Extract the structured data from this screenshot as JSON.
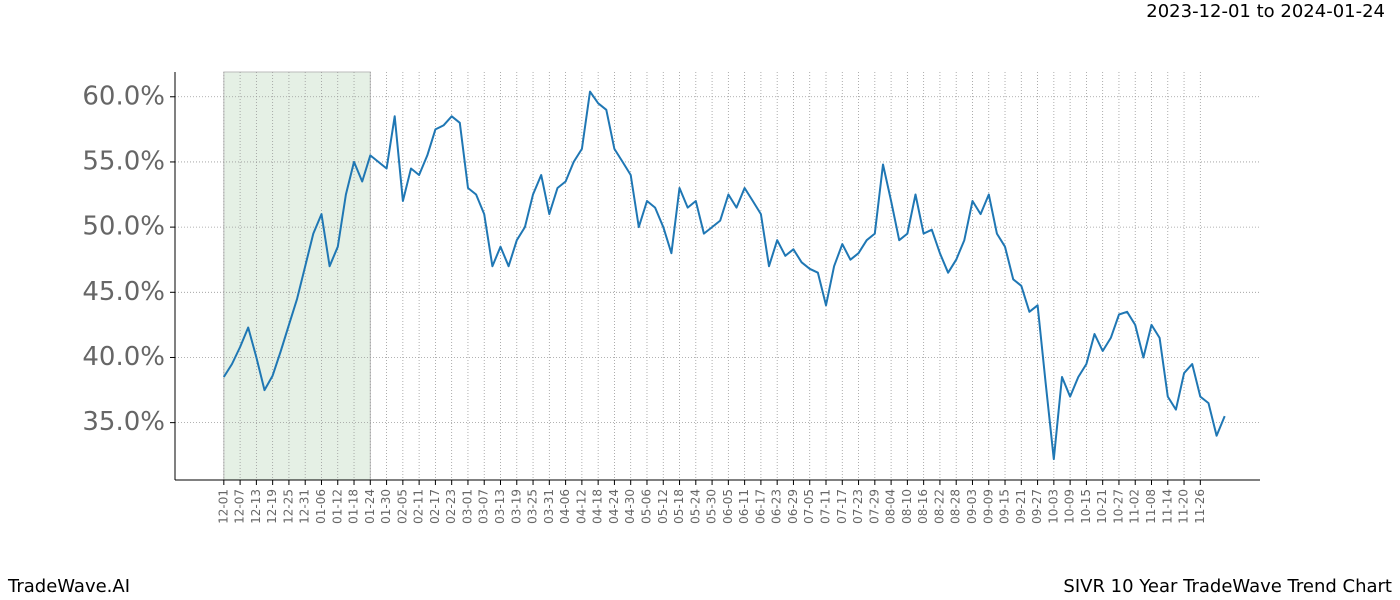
{
  "chart_data": {
    "type": "line",
    "title": "SIVR 10 Year TradeWave Trend Chart",
    "subtitle": "2023-12-01 to 2024-01-24",
    "brand": "TradeWave.AI",
    "color": "#1f77b4",
    "highlight": {
      "xlim": [
        0,
        54
      ],
      "color": "#e5f0e5"
    },
    "grid": true,
    "x": [
      0,
      3,
      6,
      9,
      12,
      15,
      18,
      21,
      24,
      27,
      30,
      33,
      36,
      39,
      42,
      45,
      48,
      51,
      54,
      57,
      60,
      63,
      66,
      69,
      72,
      75,
      78,
      81,
      84,
      87,
      90,
      93,
      96,
      99,
      102,
      105,
      108,
      111,
      114,
      117,
      120,
      123,
      126,
      129,
      132,
      135,
      138,
      141,
      144,
      147,
      150,
      153,
      156,
      159,
      162,
      165,
      168,
      171,
      174,
      177,
      180,
      183,
      186,
      189,
      192,
      195,
      198,
      201,
      204,
      207,
      210,
      213,
      216,
      219,
      222,
      225,
      228,
      231,
      234,
      237,
      240,
      243,
      246,
      249,
      252,
      255,
      258,
      261,
      264,
      267,
      270,
      273,
      276,
      279,
      282,
      285,
      288,
      291,
      294,
      297,
      300,
      303,
      306,
      309,
      312,
      315,
      318,
      321,
      324,
      327,
      330,
      333,
      336,
      339,
      342,
      345,
      348,
      351,
      354,
      357,
      360,
      363,
      366,
      369
    ],
    "values": [
      38.5,
      39.5,
      40.8,
      42.3,
      40,
      37.5,
      38.6,
      40.5,
      42.5,
      44.5,
      47,
      49.5,
      51,
      47,
      48.5,
      52.5,
      55,
      53.5,
      55.5,
      55,
      54.5,
      58.5,
      52,
      54.5,
      54,
      55.5,
      57.5,
      57.8,
      58.5,
      58,
      53,
      52.5,
      51,
      47,
      48.5,
      47,
      49,
      50,
      52.5,
      54,
      51,
      53,
      53.5,
      55,
      56,
      60.4,
      59.5,
      59,
      56,
      55,
      54,
      50,
      52,
      51.5,
      50,
      48,
      53,
      51.5,
      52,
      49.5,
      50,
      50.5,
      52.5,
      51.5,
      53,
      52,
      51,
      47,
      49,
      47.8,
      48.3,
      47.3,
      46.8,
      46.5,
      44,
      47,
      48.7,
      47.5,
      48,
      49,
      49.5,
      54.8,
      52,
      49,
      49.5,
      52.5,
      49.5,
      49.8,
      48,
      46.5,
      47.5,
      49,
      52,
      51,
      52.5,
      49.5,
      48.5,
      46,
      45.5,
      43.5,
      44,
      38,
      32.2,
      38.5,
      37,
      38.5,
      39.5,
      41.8,
      40.5,
      41.5,
      43.3,
      43.5,
      42.5,
      40,
      42.5,
      41.5,
      37,
      36,
      38.8,
      39.5,
      37,
      36.5,
      34,
      35.5
    ],
    "xlim": [
      -18,
      382
    ],
    "ylim": [
      30.6,
      61.9
    ],
    "yticks": [
      {
        "value": 35,
        "label": "35.0%"
      },
      {
        "value": 40,
        "label": "40.0%"
      },
      {
        "value": 45,
        "label": "45.0%"
      },
      {
        "value": 50,
        "label": "50.0%"
      },
      {
        "value": 55,
        "label": "55.0%"
      },
      {
        "value": 60,
        "label": "60.0%"
      }
    ],
    "xticks": [
      {
        "value": 0,
        "label": "12-01"
      },
      {
        "value": 6,
        "label": "12-07"
      },
      {
        "value": 12,
        "label": "12-13"
      },
      {
        "value": 18,
        "label": "12-19"
      },
      {
        "value": 24,
        "label": "12-25"
      },
      {
        "value": 30,
        "label": "12-31"
      },
      {
        "value": 36,
        "label": "01-06"
      },
      {
        "value": 42,
        "label": "01-12"
      },
      {
        "value": 48,
        "label": "01-18"
      },
      {
        "value": 54,
        "label": "01-24"
      },
      {
        "value": 60,
        "label": "01-30"
      },
      {
        "value": 66,
        "label": "02-05"
      },
      {
        "value": 72,
        "label": "02-11"
      },
      {
        "value": 78,
        "label": "02-17"
      },
      {
        "value": 84,
        "label": "02-23"
      },
      {
        "value": 90,
        "label": "03-01"
      },
      {
        "value": 96,
        "label": "03-07"
      },
      {
        "value": 102,
        "label": "03-13"
      },
      {
        "value": 108,
        "label": "03-19"
      },
      {
        "value": 114,
        "label": "03-25"
      },
      {
        "value": 120,
        "label": "03-31"
      },
      {
        "value": 126,
        "label": "04-06"
      },
      {
        "value": 132,
        "label": "04-12"
      },
      {
        "value": 138,
        "label": "04-18"
      },
      {
        "value": 144,
        "label": "04-24"
      },
      {
        "value": 150,
        "label": "04-30"
      },
      {
        "value": 156,
        "label": "05-06"
      },
      {
        "value": 162,
        "label": "05-12"
      },
      {
        "value": 168,
        "label": "05-18"
      },
      {
        "value": 174,
        "label": "05-24"
      },
      {
        "value": 180,
        "label": "05-30"
      },
      {
        "value": 186,
        "label": "06-05"
      },
      {
        "value": 192,
        "label": "06-11"
      },
      {
        "value": 198,
        "label": "06-17"
      },
      {
        "value": 204,
        "label": "06-23"
      },
      {
        "value": 210,
        "label": "06-29"
      },
      {
        "value": 216,
        "label": "07-05"
      },
      {
        "value": 222,
        "label": "07-11"
      },
      {
        "value": 228,
        "label": "07-17"
      },
      {
        "value": 234,
        "label": "07-23"
      },
      {
        "value": 240,
        "label": "07-29"
      },
      {
        "value": 246,
        "label": "08-04"
      },
      {
        "value": 252,
        "label": "08-10"
      },
      {
        "value": 258,
        "label": "08-16"
      },
      {
        "value": 264,
        "label": "08-22"
      },
      {
        "value": 270,
        "label": "08-28"
      },
      {
        "value": 276,
        "label": "09-03"
      },
      {
        "value": 282,
        "label": "09-09"
      },
      {
        "value": 288,
        "label": "09-15"
      },
      {
        "value": 294,
        "label": "09-21"
      },
      {
        "value": 300,
        "label": "09-27"
      },
      {
        "value": 306,
        "label": "10-03"
      },
      {
        "value": 312,
        "label": "10-09"
      },
      {
        "value": 318,
        "label": "10-15"
      },
      {
        "value": 324,
        "label": "10-21"
      },
      {
        "value": 330,
        "label": "10-27"
      },
      {
        "value": 336,
        "label": "11-02"
      },
      {
        "value": 342,
        "label": "11-08"
      },
      {
        "value": 348,
        "label": "11-14"
      },
      {
        "value": 354,
        "label": "11-20"
      },
      {
        "value": 360,
        "label": "11-26"
      }
    ]
  }
}
